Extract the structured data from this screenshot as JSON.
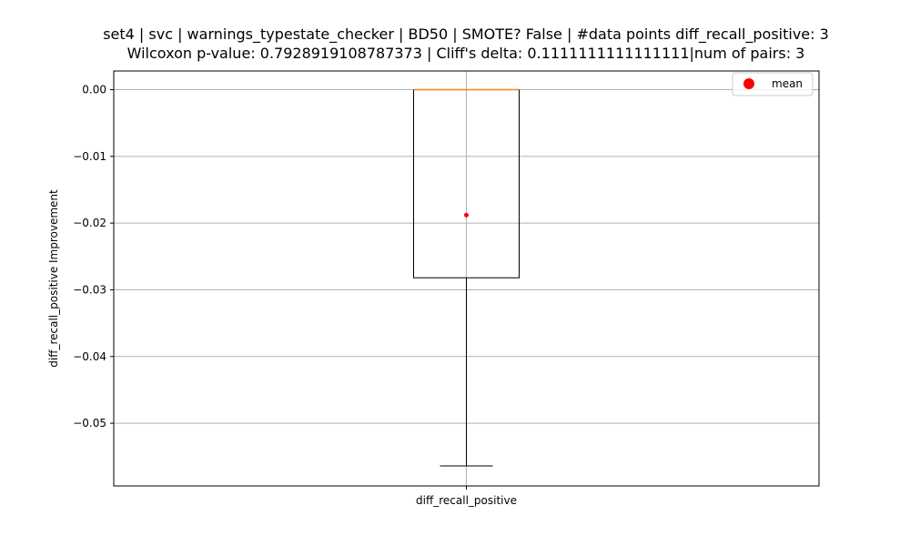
{
  "chart_data": {
    "type": "box",
    "title_lines": [
      "set4 | svc | warnings_typestate_checker | BD50 | SMOTE? False | #data points diff_recall_positive: 3",
      "Wilcoxon p-value: 0.7928919108787373 | Cliff's delta: 0.1111111111111111|num of pairs: 3"
    ],
    "xlabel": "",
    "ylabel": "diff_recall_positive Improvement",
    "categories": [
      "diff_recall_positive"
    ],
    "ylim": [
      -0.0594,
      0.0028
    ],
    "yticks": [
      0.0,
      -0.01,
      -0.02,
      -0.03,
      -0.04,
      -0.05
    ],
    "ytick_labels": [
      "0.00",
      "−0.01",
      "−0.02",
      "−0.03",
      "−0.04",
      "−0.05"
    ],
    "grid": true,
    "box": {
      "whisker_low": -0.0564,
      "q1": -0.0282,
      "median": 0.0,
      "q3": 0.0,
      "whisker_high": 0.0,
      "mean": -0.0188
    },
    "legend": {
      "position": "top-right",
      "entries": [
        {
          "label": "mean",
          "marker": "circle",
          "color": "#ff0000"
        }
      ]
    },
    "colors": {
      "box": "#000000",
      "median": "#ff7f0e",
      "mean": "#ff0000",
      "grid": "#b0b0b0"
    }
  }
}
